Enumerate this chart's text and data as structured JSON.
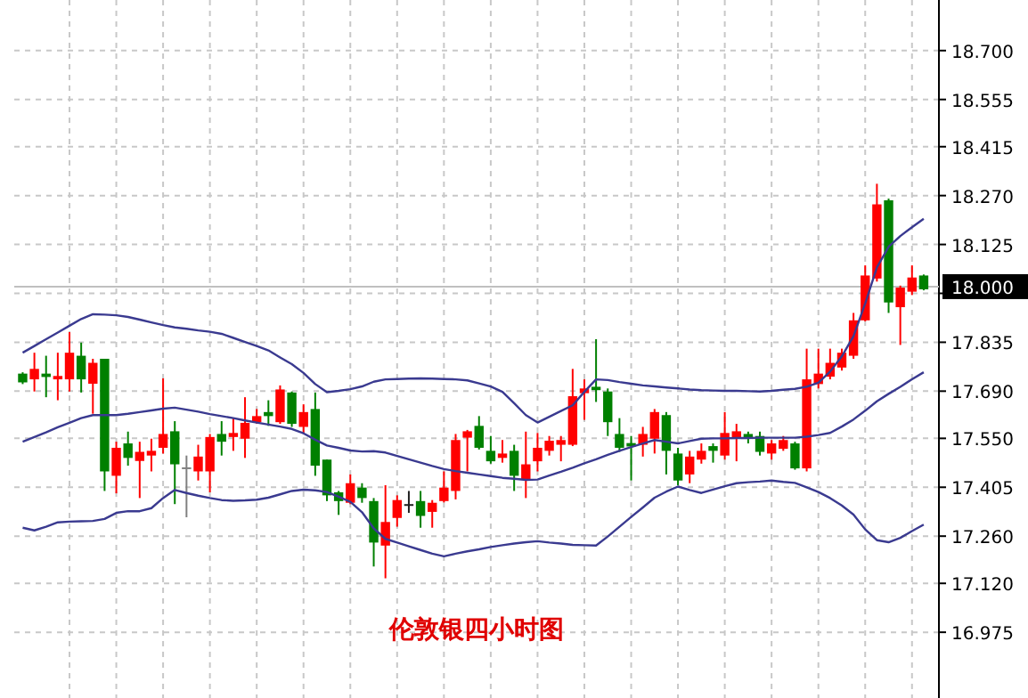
{
  "chart_data": {
    "type": "candlestick",
    "title": "伦敦银四小时图",
    "categories": [
      null,
      null,
      null,
      null,
      null,
      null,
      null,
      null,
      null,
      null,
      null,
      null,
      null,
      null,
      null,
      null,
      null,
      null,
      null,
      null,
      null,
      null,
      null,
      null,
      null,
      null,
      null,
      null,
      null,
      null,
      null,
      null,
      null,
      null,
      null,
      null,
      null,
      null,
      null,
      null,
      null,
      null,
      null,
      null,
      null,
      null,
      null,
      null,
      null,
      null,
      null,
      null,
      null,
      null,
      null,
      null,
      null,
      null,
      null,
      null,
      null,
      null,
      null,
      null,
      null,
      null,
      null,
      null,
      null,
      null,
      null,
      null,
      null,
      null,
      null,
      null,
      null,
      null
    ],
    "ohlc": [
      [
        17.742,
        17.746,
        17.711,
        17.716
      ],
      [
        17.725,
        17.804,
        17.689,
        17.756
      ],
      [
        17.742,
        17.795,
        17.672,
        17.732
      ],
      [
        17.725,
        17.804,
        17.663,
        17.735
      ],
      [
        17.725,
        17.865,
        17.689,
        17.804
      ],
      [
        17.795,
        17.834,
        17.686,
        17.725
      ],
      [
        17.712,
        17.786,
        17.623,
        17.774
      ],
      [
        17.786,
        17.786,
        17.394,
        17.452
      ],
      [
        17.439,
        17.54,
        17.387,
        17.522
      ],
      [
        17.535,
        17.57,
        17.469,
        17.492
      ],
      [
        17.483,
        17.54,
        17.373,
        17.51
      ],
      [
        17.499,
        17.549,
        17.452,
        17.513
      ],
      [
        17.522,
        17.728,
        17.505,
        17.563
      ],
      [
        17.571,
        17.601,
        17.355,
        17.473
      ],
      [
        17.464,
        17.499,
        17.316,
        17.461
      ],
      [
        17.452,
        17.531,
        17.425,
        17.496
      ],
      [
        17.452,
        17.563,
        17.39,
        17.554
      ],
      [
        17.563,
        17.601,
        17.499,
        17.54
      ],
      [
        17.554,
        17.61,
        17.513,
        17.566
      ],
      [
        17.549,
        17.672,
        17.492,
        17.596
      ],
      [
        17.598,
        17.637,
        17.593,
        17.616
      ],
      [
        17.628,
        17.663,
        17.587,
        17.616
      ],
      [
        17.598,
        17.707,
        17.593,
        17.695
      ],
      [
        17.686,
        17.689,
        17.584,
        17.593
      ],
      [
        17.584,
        17.651,
        17.563,
        17.628
      ],
      [
        17.637,
        17.686,
        17.439,
        17.469
      ],
      [
        17.487,
        17.487,
        17.364,
        17.381
      ],
      [
        17.39,
        17.394,
        17.323,
        17.364
      ],
      [
        17.359,
        17.443,
        17.355,
        17.417
      ],
      [
        17.404,
        17.417,
        17.359,
        17.373
      ],
      [
        17.364,
        17.373,
        17.17,
        17.241
      ],
      [
        17.232,
        17.411,
        17.135,
        17.302
      ],
      [
        17.314,
        17.381,
        17.288,
        17.367
      ],
      [
        17.355,
        17.394,
        17.329,
        17.355
      ],
      [
        17.364,
        17.394,
        17.285,
        17.32
      ],
      [
        17.332,
        17.367,
        17.285,
        17.359
      ],
      [
        17.364,
        17.452,
        17.36,
        17.404
      ],
      [
        17.394,
        17.563,
        17.369,
        17.545
      ],
      [
        17.552,
        17.575,
        17.452,
        17.571
      ],
      [
        17.587,
        17.616,
        17.517,
        17.522
      ],
      [
        17.513,
        17.557,
        17.475,
        17.482
      ],
      [
        17.492,
        17.545,
        17.478,
        17.505
      ],
      [
        17.513,
        17.531,
        17.394,
        17.439
      ],
      [
        17.429,
        17.57,
        17.373,
        17.473
      ],
      [
        17.482,
        17.566,
        17.452,
        17.522
      ],
      [
        17.513,
        17.557,
        17.499,
        17.543
      ],
      [
        17.531,
        17.557,
        17.482,
        17.545
      ],
      [
        17.531,
        17.756,
        17.527,
        17.675
      ],
      [
        17.684,
        17.725,
        17.605,
        17.698
      ],
      [
        17.703,
        17.844,
        17.658,
        17.693
      ],
      [
        17.689,
        17.698,
        17.557,
        17.598
      ],
      [
        17.563,
        17.61,
        17.51,
        17.522
      ],
      [
        17.536,
        17.557,
        17.425,
        17.526
      ],
      [
        17.531,
        17.584,
        17.496,
        17.563
      ],
      [
        17.549,
        17.637,
        17.505,
        17.628
      ],
      [
        17.619,
        17.628,
        17.443,
        17.513
      ],
      [
        17.505,
        17.522,
        17.411,
        17.425
      ],
      [
        17.443,
        17.513,
        17.417,
        17.496
      ],
      [
        17.487,
        17.535,
        17.475,
        17.513
      ],
      [
        17.527,
        17.535,
        17.478,
        17.513
      ],
      [
        17.499,
        17.628,
        17.487,
        17.566
      ],
      [
        17.549,
        17.593,
        17.482,
        17.571
      ],
      [
        17.563,
        17.57,
        17.535,
        17.549
      ],
      [
        17.557,
        17.57,
        17.499,
        17.51
      ],
      [
        17.505,
        17.545,
        17.487,
        17.535
      ],
      [
        17.519,
        17.557,
        17.513,
        17.545
      ],
      [
        17.535,
        17.54,
        17.457,
        17.461
      ],
      [
        17.461,
        17.816,
        17.452,
        17.725
      ],
      [
        17.711,
        17.816,
        17.698,
        17.742
      ],
      [
        17.733,
        17.816,
        17.725,
        17.774
      ],
      [
        17.76,
        17.816,
        17.751,
        17.804
      ],
      [
        17.795,
        17.922,
        17.786,
        17.9
      ],
      [
        17.9,
        18.063,
        17.897,
        18.033
      ],
      [
        18.024,
        18.305,
        18.015,
        18.244
      ],
      [
        18.256,
        18.261,
        17.922,
        17.953
      ],
      [
        17.939,
        18.003,
        17.827,
        17.997
      ],
      [
        17.985,
        18.063,
        17.975,
        18.027
      ],
      [
        18.033,
        18.036,
        17.989,
        17.992
      ]
    ],
    "colors": [
      "#008000",
      "#ff0000",
      "#008000",
      "#ff0000",
      "#ff0000",
      "#008000",
      "#ff0000",
      "#008000",
      "#ff0000",
      "#008000",
      "#ff0000",
      "#ff0000",
      "#ff0000",
      "#008000",
      "#808080",
      "#ff0000",
      "#ff0000",
      "#008000",
      "#ff0000",
      "#ff0000",
      "#ff0000",
      "#008000",
      "#ff0000",
      "#008000",
      "#ff0000",
      "#008000",
      "#008000",
      "#008000",
      "#ff0000",
      "#008000",
      "#008000",
      "#ff0000",
      "#ff0000",
      "#202020",
      "#008000",
      "#ff0000",
      "#ff0000",
      "#ff0000",
      "#ff0000",
      "#008000",
      "#008000",
      "#ff0000",
      "#008000",
      "#ff0000",
      "#ff0000",
      "#ff0000",
      "#ff0000",
      "#ff0000",
      "#ff0000",
      "#008000",
      "#008000",
      "#008000",
      "#008000",
      "#ff0000",
      "#ff0000",
      "#008000",
      "#008000",
      "#ff0000",
      "#ff0000",
      "#008000",
      "#ff0000",
      "#ff0000",
      "#008000",
      "#008000",
      "#ff0000",
      "#ff0000",
      "#008000",
      "#ff0000",
      "#ff0000",
      "#ff0000",
      "#ff0000",
      "#ff0000",
      "#ff0000",
      "#ff0000",
      "#008000",
      "#ff0000",
      "#ff0000",
      "#008000"
    ],
    "series": [
      {
        "type": "line",
        "color": "#3a3a90",
        "values": [
          17.804,
          17.824,
          17.844,
          17.864,
          17.884,
          17.904,
          17.918,
          17.917,
          17.915,
          17.91,
          17.902,
          17.894,
          17.886,
          17.879,
          17.875,
          17.87,
          17.866,
          17.86,
          17.848,
          17.836,
          17.824,
          17.811,
          17.79,
          17.77,
          17.744,
          17.711,
          17.687,
          17.691,
          17.696,
          17.704,
          17.718,
          17.725,
          17.726,
          17.727,
          17.728,
          17.727,
          17.726,
          17.725,
          17.722,
          17.713,
          17.704,
          17.688,
          17.654,
          17.619,
          17.597,
          17.614,
          17.631,
          17.648,
          17.688,
          17.725,
          17.723,
          17.717,
          17.712,
          17.707,
          17.704,
          17.701,
          17.698,
          17.695,
          17.693,
          17.692,
          17.691,
          17.691,
          17.69,
          17.689,
          17.691,
          17.694,
          17.697,
          17.703,
          17.715,
          17.748,
          17.793,
          17.853,
          17.95,
          18.057,
          18.118,
          18.15,
          18.176,
          18.201
        ]
      },
      {
        "type": "line",
        "color": "#3a3a90",
        "values": [
          17.54,
          17.554,
          17.568,
          17.583,
          17.596,
          17.61,
          17.619,
          17.619,
          17.619,
          17.623,
          17.628,
          17.633,
          17.638,
          17.641,
          17.635,
          17.629,
          17.622,
          17.616,
          17.61,
          17.603,
          17.597,
          17.591,
          17.585,
          17.578,
          17.565,
          17.546,
          17.529,
          17.522,
          17.514,
          17.511,
          17.512,
          17.508,
          17.498,
          17.488,
          17.478,
          17.468,
          17.459,
          17.453,
          17.448,
          17.443,
          17.438,
          17.433,
          17.43,
          17.427,
          17.428,
          17.44,
          17.451,
          17.463,
          17.476,
          17.488,
          17.501,
          17.513,
          17.524,
          17.535,
          17.545,
          17.54,
          17.535,
          17.542,
          17.549,
          17.55,
          17.55,
          17.551,
          17.551,
          17.552,
          17.552,
          17.552,
          17.552,
          17.555,
          17.56,
          17.566,
          17.585,
          17.606,
          17.632,
          17.66,
          17.682,
          17.703,
          17.725,
          17.746
        ]
      },
      {
        "type": "line",
        "color": "#3a3a90",
        "values": [
          17.285,
          17.277,
          17.288,
          17.301,
          17.303,
          17.304,
          17.305,
          17.311,
          17.329,
          17.334,
          17.334,
          17.343,
          17.373,
          17.397,
          17.388,
          17.38,
          17.373,
          17.367,
          17.365,
          17.366,
          17.368,
          17.374,
          17.384,
          17.394,
          17.398,
          17.396,
          17.391,
          17.377,
          17.362,
          17.331,
          17.283,
          17.252,
          17.241,
          17.23,
          17.219,
          17.208,
          17.2,
          17.208,
          17.215,
          17.221,
          17.228,
          17.233,
          17.238,
          17.242,
          17.245,
          17.241,
          17.238,
          17.234,
          17.233,
          17.232,
          17.259,
          17.288,
          17.317,
          17.345,
          17.374,
          17.392,
          17.407,
          17.397,
          17.388,
          17.398,
          17.408,
          17.417,
          17.42,
          17.422,
          17.425,
          17.421,
          17.418,
          17.405,
          17.391,
          17.373,
          17.351,
          17.324,
          17.28,
          17.248,
          17.242,
          17.255,
          17.275,
          17.294
        ]
      }
    ],
    "ylim": [
      16.78,
      18.85
    ],
    "yticks": [
      {
        "value": 18.7,
        "label": "18.700"
      },
      {
        "value": 18.555,
        "label": "18.555"
      },
      {
        "value": 18.415,
        "label": "18.415"
      },
      {
        "value": 18.27,
        "label": "18.270"
      },
      {
        "value": 18.125,
        "label": "18.125"
      },
      {
        "value": 17.98,
        "label": null
      },
      {
        "value": 17.835,
        "label": "17.835"
      },
      {
        "value": 17.69,
        "label": "17.690"
      },
      {
        "value": 17.55,
        "label": "17.550"
      },
      {
        "value": 17.405,
        "label": "17.405"
      },
      {
        "value": 17.26,
        "label": "17.260"
      },
      {
        "value": 17.12,
        "label": "17.120"
      },
      {
        "value": 16.975,
        "label": "16.975"
      }
    ],
    "ref_lines": [
      {
        "axis": "y",
        "value": 18.0,
        "label": "18.000",
        "color": "#c0c0c0"
      }
    ],
    "grid": true,
    "tick_labels": "y"
  }
}
